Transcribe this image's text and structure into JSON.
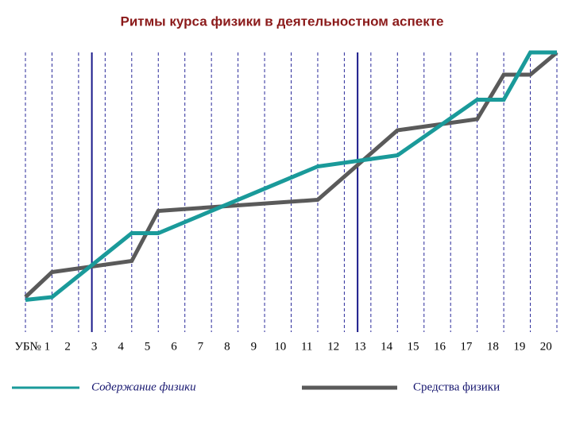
{
  "chart_data": {
    "type": "line",
    "title": "Ритмы курса физики в деятельностном аспекте",
    "categories": [
      "УБ№ 1",
      "2",
      "3",
      "4",
      "5",
      "6",
      "7",
      "8",
      "9",
      "10",
      "11",
      "12",
      "13",
      "14",
      "15",
      "16",
      "17",
      "18",
      "19",
      "20"
    ],
    "x": [
      0,
      1,
      4,
      5,
      11,
      14,
      17,
      18,
      19,
      20
    ],
    "xlim": [
      0,
      20
    ],
    "ylim": [
      0,
      100
    ],
    "highlight": [
      "3",
      "13"
    ],
    "series": [
      {
        "name": "Содержание физики",
        "color": "#1a9a9a",
        "values": [
          11,
          12,
          35,
          35,
          59,
          63,
          83,
          83,
          100,
          100
        ]
      },
      {
        "name": "Средства физики",
        "color": "#5a5a5a",
        "values": [
          12,
          21,
          25,
          43,
          47,
          72,
          76,
          92,
          92,
          100
        ]
      }
    ]
  }
}
